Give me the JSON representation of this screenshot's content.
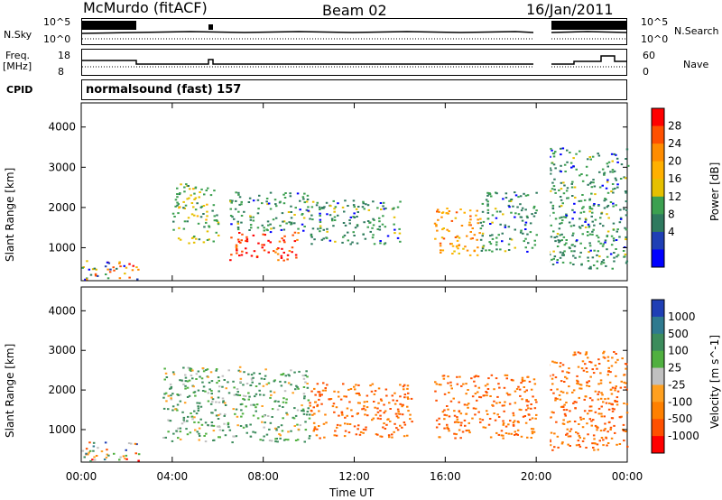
{
  "header": {
    "station": "McMurdo (fitACF)",
    "beam": "Beam 02",
    "date": "16/Jan/2011"
  },
  "sky_panel": {
    "left_label": "N.Sky",
    "right_label": "N.Search",
    "left_ticks": [
      "10^5",
      "10^0"
    ],
    "right_ticks": [
      "10^5",
      "10^0"
    ]
  },
  "freq_panel": {
    "left_label_top": "Freq.",
    "left_label_bottom": "[MHz]",
    "right_label": "Nave",
    "left_ticks": [
      "18",
      "8"
    ],
    "right_ticks": [
      "60",
      "0"
    ]
  },
  "cpid": {
    "label": "CPID",
    "value": "normalsound (fast) 157"
  },
  "time_axis": {
    "label": "Time UT",
    "ticks": [
      "00:00",
      "04:00",
      "08:00",
      "12:00",
      "16:00",
      "20:00",
      "00:00"
    ]
  },
  "colors": {
    "red": "#ff0000",
    "orange": "#ff8c00",
    "yellow": "#f5b800",
    "green": "#2f8f5f",
    "blue": "#1f3fb5",
    "grey": "#c0c0c0"
  },
  "chart_data": [
    {
      "type": "heatmap",
      "name": "power",
      "ylabel": "Slant Range [km]",
      "xlabel": "Time UT",
      "xlim": [
        "00:00",
        "24:00"
      ],
      "ylim": [
        180,
        4600
      ],
      "yticks": [
        1000,
        2000,
        3000,
        4000
      ],
      "colorbar_label": "Power [dB]",
      "colorbar_ticks": [
        "28",
        "24",
        "20",
        "16",
        "12",
        "8",
        "4"
      ],
      "colorbar_colors": [
        "#ff0000",
        "#ff5000",
        "#ff8c00",
        "#ffb000",
        "#e6c000",
        "#3ca050",
        "#2f7a5f",
        "#1f3fb5",
        "#0000ff"
      ],
      "regions": [
        {
          "t_start": 0.0,
          "t_end": 2.5,
          "r_min": 200,
          "r_max": 700,
          "level": "mixed"
        },
        {
          "t_start": 4.0,
          "t_end": 6.0,
          "r_min": 1100,
          "r_max": 2600,
          "level": 12
        },
        {
          "t_start": 6.5,
          "t_end": 9.5,
          "r_min": 700,
          "r_max": 1400,
          "level": 28
        },
        {
          "t_start": 6.5,
          "t_end": 10.0,
          "r_min": 1400,
          "r_max": 2400,
          "level": 8
        },
        {
          "t_start": 10.0,
          "t_end": 14.0,
          "r_min": 1100,
          "r_max": 2200,
          "level": 8
        },
        {
          "t_start": 15.5,
          "t_end": 17.5,
          "r_min": 800,
          "r_max": 2000,
          "level": 20
        },
        {
          "t_start": 17.5,
          "t_end": 20.0,
          "r_min": 900,
          "r_max": 2400,
          "level": 8
        },
        {
          "t_start": 20.5,
          "t_end": 24.0,
          "r_min": 500,
          "r_max": 3500,
          "level": 8
        }
      ]
    },
    {
      "type": "heatmap",
      "name": "velocity",
      "ylabel": "Slant Range [km]",
      "xlabel": "Time UT",
      "xlim": [
        "00:00",
        "24:00"
      ],
      "ylim": [
        180,
        4600
      ],
      "yticks": [
        1000,
        2000,
        3000,
        4000
      ],
      "colorbar_label": "Velocity [m s^-1]",
      "colorbar_ticks": [
        "1000",
        "500",
        "100",
        "25",
        "-25",
        "-100",
        "-500",
        "-1000"
      ],
      "colorbar_colors": [
        "#1f3fb5",
        "#2f7a8f",
        "#3c8c5c",
        "#50b040",
        "#c0c0c0",
        "#ffa020",
        "#ff8000",
        "#ff5000",
        "#ff0000"
      ],
      "regions": [
        {
          "t_start": 0.0,
          "t_end": 2.5,
          "r_min": 200,
          "r_max": 700,
          "level": "mixed"
        },
        {
          "t_start": 3.5,
          "t_end": 10.0,
          "r_min": 700,
          "r_max": 2600,
          "level": 100
        },
        {
          "t_start": 10.0,
          "t_end": 14.5,
          "r_min": 800,
          "r_max": 2200,
          "level": -500
        },
        {
          "t_start": 15.5,
          "t_end": 20.0,
          "r_min": 800,
          "r_max": 2400,
          "level": -500
        },
        {
          "t_start": 20.5,
          "t_end": 24.0,
          "r_min": 500,
          "r_max": 3000,
          "level": -500
        }
      ]
    }
  ]
}
